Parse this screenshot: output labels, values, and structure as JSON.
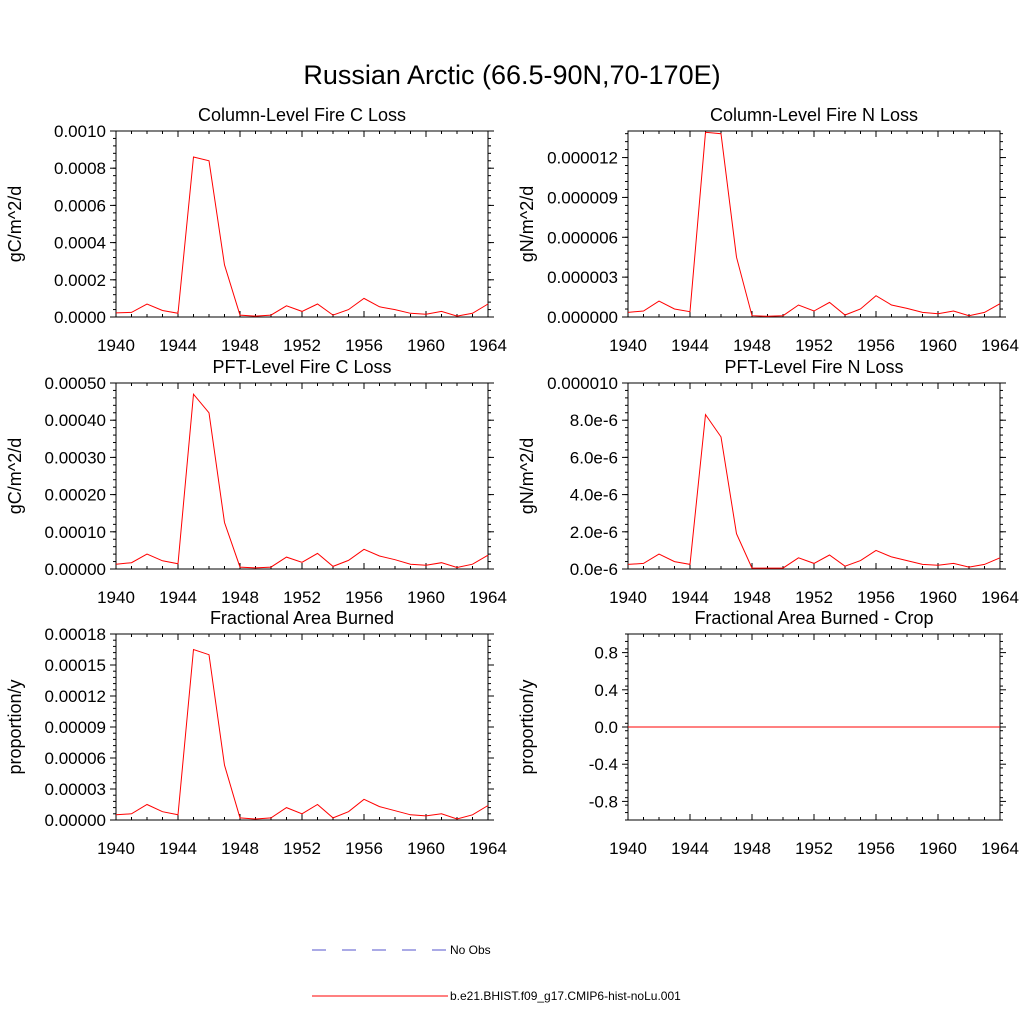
{
  "figure_title": "Russian Arctic (66.5-90N,70-170E)",
  "legend": [
    {
      "label": "No Obs",
      "color": "#5555cc",
      "dash": true
    },
    {
      "label": "b.e21.BHIST.f09_g17.CMIP6-hist-noLu.001",
      "color": "#ff0000",
      "dash": false
    }
  ],
  "chart_data": [
    {
      "type": "line",
      "title": "Column-Level Fire C Loss",
      "xlabel": "",
      "ylabel": "gC/m^2/d",
      "xlim": [
        1940,
        1964
      ],
      "ylim": [
        0,
        0.001
      ],
      "xticks": [
        1940,
        1944,
        1948,
        1952,
        1956,
        1960,
        1964
      ],
      "yticks": [
        0,
        0.0002,
        0.0004,
        0.0006,
        0.0008,
        0.001
      ],
      "yticklabels": [
        "0.0000",
        "0.0002",
        "0.0004",
        "0.0006",
        "0.0008",
        "0.0010"
      ],
      "series": [
        {
          "color": "#ff0000",
          "x": [
            1940,
            1941,
            1942,
            1943,
            1944,
            1945,
            1946,
            1947,
            1948,
            1949,
            1950,
            1951,
            1952,
            1953,
            1954,
            1955,
            1956,
            1957,
            1958,
            1959,
            1960,
            1961,
            1962,
            1963,
            1964
          ],
          "y": [
            2.2e-05,
            2.5e-05,
            7e-05,
            3.5e-05,
            2e-05,
            0.00086,
            0.00084,
            0.00028,
            1e-05,
            5e-06,
            1e-05,
            6e-05,
            3e-05,
            7e-05,
            1e-05,
            4e-05,
            0.0001,
            5.5e-05,
            4e-05,
            2e-05,
            1.5e-05,
            3e-05,
            5e-06,
            2e-05,
            7e-05
          ]
        }
      ]
    },
    {
      "type": "line",
      "title": "Column-Level Fire N Loss",
      "xlabel": "",
      "ylabel": "gN/m^2/d",
      "xlim": [
        1940,
        1964
      ],
      "ylim": [
        0,
        1.4e-05
      ],
      "xticks": [
        1940,
        1944,
        1948,
        1952,
        1956,
        1960,
        1964
      ],
      "yticks": [
        0,
        3e-06,
        6e-06,
        9e-06,
        1.2e-05
      ],
      "yticklabels": [
        "0.000000",
        "0.000003",
        "0.000006",
        "0.000009",
        "0.000012"
      ],
      "series": [
        {
          "color": "#ff0000",
          "x": [
            1940,
            1941,
            1942,
            1943,
            1944,
            1945,
            1946,
            1947,
            1948,
            1949,
            1950,
            1951,
            1952,
            1953,
            1954,
            1955,
            1956,
            1957,
            1958,
            1959,
            1960,
            1961,
            1962,
            1963,
            1964
          ],
          "y": [
            3.5e-07,
            4.5e-07,
            1.2e-06,
            6e-07,
            4e-07,
            1.39e-05,
            1.38e-05,
            4.5e-06,
            1e-07,
            5e-08,
            1e-07,
            9e-07,
            4.5e-07,
            1.1e-06,
            1.5e-07,
            6e-07,
            1.6e-06,
            9e-07,
            6.5e-07,
            3.5e-07,
            2.5e-07,
            4.5e-07,
            1e-07,
            3.5e-07,
            1e-06
          ]
        }
      ]
    },
    {
      "type": "line",
      "title": "PFT-Level Fire C Loss",
      "xlabel": "",
      "ylabel": "gC/m^2/d",
      "xlim": [
        1940,
        1964
      ],
      "ylim": [
        0,
        0.0005
      ],
      "xticks": [
        1940,
        1944,
        1948,
        1952,
        1956,
        1960,
        1964
      ],
      "yticks": [
        0,
        0.0001,
        0.0002,
        0.0003,
        0.0004,
        0.0005
      ],
      "yticklabels": [
        "0.00000",
        "0.00010",
        "0.00020",
        "0.00030",
        "0.00040",
        "0.00050"
      ],
      "series": [
        {
          "color": "#ff0000",
          "x": [
            1940,
            1941,
            1942,
            1943,
            1944,
            1945,
            1946,
            1947,
            1948,
            1949,
            1950,
            1951,
            1952,
            1953,
            1954,
            1955,
            1956,
            1957,
            1958,
            1959,
            1960,
            1961,
            1962,
            1963,
            1964
          ],
          "y": [
            1.3e-05,
            1.7e-05,
            4e-05,
            2.2e-05,
            1.4e-05,
            0.00047,
            0.00042,
            0.000125,
            5e-06,
            3e-06,
            5e-06,
            3.2e-05,
            1.8e-05,
            4.2e-05,
            7e-06,
            2.3e-05,
            5.3e-05,
            3.5e-05,
            2.5e-05,
            1.3e-05,
            1e-05,
            1.7e-05,
            4e-06,
            1.3e-05,
            3.7e-05
          ]
        }
      ]
    },
    {
      "type": "line",
      "title": "PFT-Level Fire N Loss",
      "xlabel": "",
      "ylabel": "gN/m^2/d",
      "xlim": [
        1940,
        1964
      ],
      "ylim": [
        0,
        1e-05
      ],
      "xticks": [
        1940,
        1944,
        1948,
        1952,
        1956,
        1960,
        1964
      ],
      "yticks": [
        0,
        2e-06,
        4e-06,
        6e-06,
        8e-06,
        1e-05
      ],
      "yticklabels": [
        "0.0e-6",
        "2.0e-6",
        "4.0e-6",
        "6.0e-6",
        "8.0e-6",
        "0.000010"
      ],
      "series": [
        {
          "color": "#ff0000",
          "x": [
            1940,
            1941,
            1942,
            1943,
            1944,
            1945,
            1946,
            1947,
            1948,
            1949,
            1950,
            1951,
            1952,
            1953,
            1954,
            1955,
            1956,
            1957,
            1958,
            1959,
            1960,
            1961,
            1962,
            1963,
            1964
          ],
          "y": [
            2.5e-07,
            3e-07,
            8e-07,
            4e-07,
            2.5e-07,
            8.3e-06,
            7.1e-06,
            1.9e-06,
            5e-08,
            5e-08,
            5e-08,
            6e-07,
            3e-07,
            7.5e-07,
            1.5e-07,
            4.5e-07,
            1e-06,
            6.5e-07,
            4.5e-07,
            2.5e-07,
            2e-07,
            3e-07,
            1e-07,
            2.5e-07,
            6e-07
          ]
        }
      ]
    },
    {
      "type": "line",
      "title": "Fractional Area Burned",
      "xlabel": "",
      "ylabel": "proportion/y",
      "xlim": [
        1940,
        1964
      ],
      "ylim": [
        0,
        0.00018
      ],
      "xticks": [
        1940,
        1944,
        1948,
        1952,
        1956,
        1960,
        1964
      ],
      "yticks": [
        0,
        3e-05,
        6e-05,
        9e-05,
        0.00012,
        0.00015,
        0.00018
      ],
      "yticklabels": [
        "0.00000",
        "0.00003",
        "0.00006",
        "0.00009",
        "0.00012",
        "0.00015",
        "0.00018"
      ],
      "series": [
        {
          "color": "#ff0000",
          "x": [
            1940,
            1941,
            1942,
            1943,
            1944,
            1945,
            1946,
            1947,
            1948,
            1949,
            1950,
            1951,
            1952,
            1953,
            1954,
            1955,
            1956,
            1957,
            1958,
            1959,
            1960,
            1961,
            1962,
            1963,
            1964
          ],
          "y": [
            5e-06,
            6e-06,
            1.5e-05,
            8e-06,
            5e-06,
            0.000165,
            0.00016,
            5.3e-05,
            2e-06,
            1e-06,
            2e-06,
            1.2e-05,
            6e-06,
            1.5e-05,
            2e-06,
            8e-06,
            2e-05,
            1.3e-05,
            9e-06,
            5e-06,
            4e-06,
            6e-06,
            1e-06,
            5e-06,
            1.4e-05
          ]
        }
      ]
    },
    {
      "type": "line",
      "title": "Fractional Area Burned - Crop",
      "xlabel": "",
      "ylabel": "proportion/y",
      "xlim": [
        1940,
        1964
      ],
      "ylim": [
        -1,
        1
      ],
      "xticks": [
        1940,
        1944,
        1948,
        1952,
        1956,
        1960,
        1964
      ],
      "yticks": [
        -0.8,
        -0.4,
        0,
        0.4,
        0.8
      ],
      "yticklabels": [
        "-0.8",
        "-0.4",
        "0.0",
        "0.4",
        "0.8"
      ],
      "series": [
        {
          "color": "#ff0000",
          "x": [
            1940,
            1964
          ],
          "y": [
            0,
            0
          ]
        }
      ]
    }
  ]
}
